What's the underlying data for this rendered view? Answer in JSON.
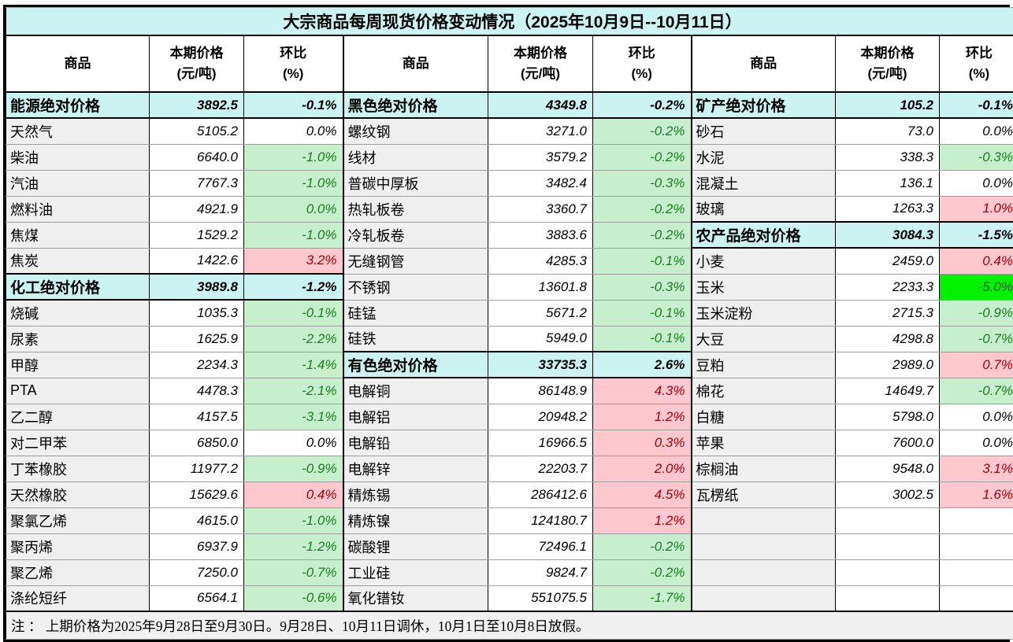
{
  "colors": {
    "section_bg": "#CAF3F1",
    "name_cell_bg": "#EFEFEF",
    "decline_bg": "#C6EFCE",
    "decline_text": "#1E7C1E",
    "rise_bg": "#FFC7CE",
    "rise_text": "#A30008",
    "big_decline_bg": "#00F200",
    "big_decline_text": "#3E513E",
    "border": "#000000",
    "gridline": "#9E9E9E",
    "note_bg": "#F0F0F0"
  },
  "chart_data": {
    "type": "table",
    "title": "大宗商品每周现货价格变动情况（2025年10月9日--10月11日）",
    "column_headers": {
      "commodity": "商品",
      "price": "本期价格",
      "price_unit": "(元/吨)",
      "pct": "环比",
      "pct_unit": "(%)"
    },
    "note": "注 ： 上期价格为2025年9月28日至9月30日。9月28日、10月11日调休，10月1日至10月8日放假。",
    "groups": [
      [
        {
          "name": "能源绝对价格",
          "price": "3892.5",
          "pct": "-0.1%",
          "kind": "section"
        },
        {
          "name": "天然气",
          "price": "5105.2",
          "pct": "0.0%",
          "kind": "item",
          "pct_style": "plain"
        },
        {
          "name": "柴油",
          "price": "6640.0",
          "pct": "-1.0%",
          "kind": "item",
          "pct_style": "green"
        },
        {
          "name": "汽油",
          "price": "7767.3",
          "pct": "-1.0%",
          "kind": "item",
          "pct_style": "green"
        },
        {
          "name": "燃料油",
          "price": "4921.9",
          "pct": "0.0%",
          "kind": "item",
          "pct_style": "green"
        },
        {
          "name": "焦煤",
          "price": "1529.2",
          "pct": "-1.0%",
          "kind": "item",
          "pct_style": "green"
        },
        {
          "name": "焦炭",
          "price": "1422.6",
          "pct": "3.2%",
          "kind": "item",
          "pct_style": "pink"
        },
        {
          "name": "化工绝对价格",
          "price": "3989.8",
          "pct": "-1.2%",
          "kind": "section"
        },
        {
          "name": "烧碱",
          "price": "1035.3",
          "pct": "-0.1%",
          "kind": "item",
          "pct_style": "green"
        },
        {
          "name": "尿素",
          "price": "1625.9",
          "pct": "-2.2%",
          "kind": "item",
          "pct_style": "green"
        },
        {
          "name": "甲醇",
          "price": "2234.3",
          "pct": "-1.4%",
          "kind": "item",
          "pct_style": "green"
        },
        {
          "name": "PTA",
          "price": "4478.3",
          "pct": "-2.1%",
          "kind": "item",
          "pct_style": "green"
        },
        {
          "name": "乙二醇",
          "price": "4157.5",
          "pct": "-3.1%",
          "kind": "item",
          "pct_style": "green"
        },
        {
          "name": "对二甲苯",
          "price": "6850.0",
          "pct": "0.0%",
          "kind": "item",
          "pct_style": "plain"
        },
        {
          "name": "丁苯橡胶",
          "price": "11977.2",
          "pct": "-0.9%",
          "kind": "item",
          "pct_style": "green"
        },
        {
          "name": "天然橡胶",
          "price": "15629.6",
          "pct": "0.4%",
          "kind": "item",
          "pct_style": "pink"
        },
        {
          "name": "聚氯乙烯",
          "price": "4615.0",
          "pct": "-1.0%",
          "kind": "item",
          "pct_style": "green"
        },
        {
          "name": "聚丙烯",
          "price": "6937.9",
          "pct": "-1.2%",
          "kind": "item",
          "pct_style": "green"
        },
        {
          "name": "聚乙烯",
          "price": "7250.0",
          "pct": "-0.7%",
          "kind": "item",
          "pct_style": "green"
        },
        {
          "name": "涤纶短纤",
          "price": "6564.1",
          "pct": "-0.6%",
          "kind": "item",
          "pct_style": "green"
        }
      ],
      [
        {
          "name": "黑色绝对价格",
          "price": "4349.8",
          "pct": "-0.2%",
          "kind": "section"
        },
        {
          "name": "螺纹钢",
          "price": "3271.0",
          "pct": "-0.2%",
          "kind": "item",
          "pct_style": "green"
        },
        {
          "name": "线材",
          "price": "3579.2",
          "pct": "-0.2%",
          "kind": "item",
          "pct_style": "green"
        },
        {
          "name": "普碳中厚板",
          "price": "3482.4",
          "pct": "-0.3%",
          "kind": "item",
          "pct_style": "green"
        },
        {
          "name": "热轧板卷",
          "price": "3360.7",
          "pct": "-0.2%",
          "kind": "item",
          "pct_style": "green"
        },
        {
          "name": "冷轧板卷",
          "price": "3883.6",
          "pct": "-0.2%",
          "kind": "item",
          "pct_style": "green"
        },
        {
          "name": "无缝钢管",
          "price": "4285.3",
          "pct": "-0.1%",
          "kind": "item",
          "pct_style": "green"
        },
        {
          "name": "不锈钢",
          "price": "13601.8",
          "pct": "-0.3%",
          "kind": "item",
          "pct_style": "green"
        },
        {
          "name": "硅锰",
          "price": "5671.2",
          "pct": "-0.1%",
          "kind": "item",
          "pct_style": "green"
        },
        {
          "name": "硅铁",
          "price": "5949.0",
          "pct": "-0.1%",
          "kind": "item",
          "pct_style": "green"
        },
        {
          "name": "有色绝对价格",
          "price": "33735.3",
          "pct": "2.6%",
          "kind": "section"
        },
        {
          "name": "电解铜",
          "price": "86148.9",
          "pct": "4.3%",
          "kind": "item",
          "pct_style": "pink"
        },
        {
          "name": "电解铝",
          "price": "20948.2",
          "pct": "1.2%",
          "kind": "item",
          "pct_style": "pink"
        },
        {
          "name": "电解铅",
          "price": "16966.5",
          "pct": "0.3%",
          "kind": "item",
          "pct_style": "pink"
        },
        {
          "name": "电解锌",
          "price": "22203.7",
          "pct": "2.0%",
          "kind": "item",
          "pct_style": "pink"
        },
        {
          "name": "精炼锡",
          "price": "286412.6",
          "pct": "4.5%",
          "kind": "item",
          "pct_style": "pink"
        },
        {
          "name": "精炼镍",
          "price": "124180.7",
          "pct": "1.2%",
          "kind": "item",
          "pct_style": "pink"
        },
        {
          "name": "碳酸锂",
          "price": "72496.1",
          "pct": "-0.2%",
          "kind": "item",
          "pct_style": "green"
        },
        {
          "name": "工业硅",
          "price": "9824.7",
          "pct": "-0.2%",
          "kind": "item",
          "pct_style": "green"
        },
        {
          "name": "氧化镨钕",
          "price": "551075.5",
          "pct": "-1.7%",
          "kind": "item",
          "pct_style": "green"
        }
      ],
      [
        {
          "name": "矿产绝对价格",
          "price": "105.2",
          "pct": "-0.1%",
          "kind": "section"
        },
        {
          "name": "砂石",
          "price": "73.0",
          "pct": "0.0%",
          "kind": "item",
          "pct_style": "plain"
        },
        {
          "name": "水泥",
          "price": "338.3",
          "pct": "-0.3%",
          "kind": "item",
          "pct_style": "green"
        },
        {
          "name": "混凝土",
          "price": "136.1",
          "pct": "0.0%",
          "kind": "item",
          "pct_style": "plain"
        },
        {
          "name": "玻璃",
          "price": "1263.3",
          "pct": "1.0%",
          "kind": "item",
          "pct_style": "pink"
        },
        {
          "name": "农产品绝对价格",
          "price": "3084.3",
          "pct": "-1.5%",
          "kind": "section"
        },
        {
          "name": "小麦",
          "price": "2459.0",
          "pct": "0.4%",
          "kind": "item",
          "pct_style": "pink"
        },
        {
          "name": "玉米",
          "price": "2233.3",
          "pct": "-5.0%",
          "kind": "item",
          "pct_style": "lime"
        },
        {
          "name": "玉米淀粉",
          "price": "2715.3",
          "pct": "-0.9%",
          "kind": "item",
          "pct_style": "green"
        },
        {
          "name": "大豆",
          "price": "4298.8",
          "pct": "-0.7%",
          "kind": "item",
          "pct_style": "green"
        },
        {
          "name": "豆粕",
          "price": "2989.0",
          "pct": "0.7%",
          "kind": "item",
          "pct_style": "pink"
        },
        {
          "name": "棉花",
          "price": "14649.7",
          "pct": "-0.7%",
          "kind": "item",
          "pct_style": "green"
        },
        {
          "name": "白糖",
          "price": "5798.0",
          "pct": "0.0%",
          "kind": "item",
          "pct_style": "plain"
        },
        {
          "name": "苹果",
          "price": "7600.0",
          "pct": "0.0%",
          "kind": "item",
          "pct_style": "plain"
        },
        {
          "name": "棕榈油",
          "price": "9548.0",
          "pct": "3.1%",
          "kind": "item",
          "pct_style": "pink"
        },
        {
          "name": "瓦楞纸",
          "price": "3002.5",
          "pct": "1.6%",
          "kind": "item",
          "pct_style": "pink"
        },
        {
          "name": "",
          "price": "",
          "pct": "",
          "kind": "empty"
        },
        {
          "name": "",
          "price": "",
          "pct": "",
          "kind": "empty"
        },
        {
          "name": "",
          "price": "",
          "pct": "",
          "kind": "empty"
        },
        {
          "name": "",
          "price": "",
          "pct": "",
          "kind": "empty"
        }
      ]
    ]
  }
}
